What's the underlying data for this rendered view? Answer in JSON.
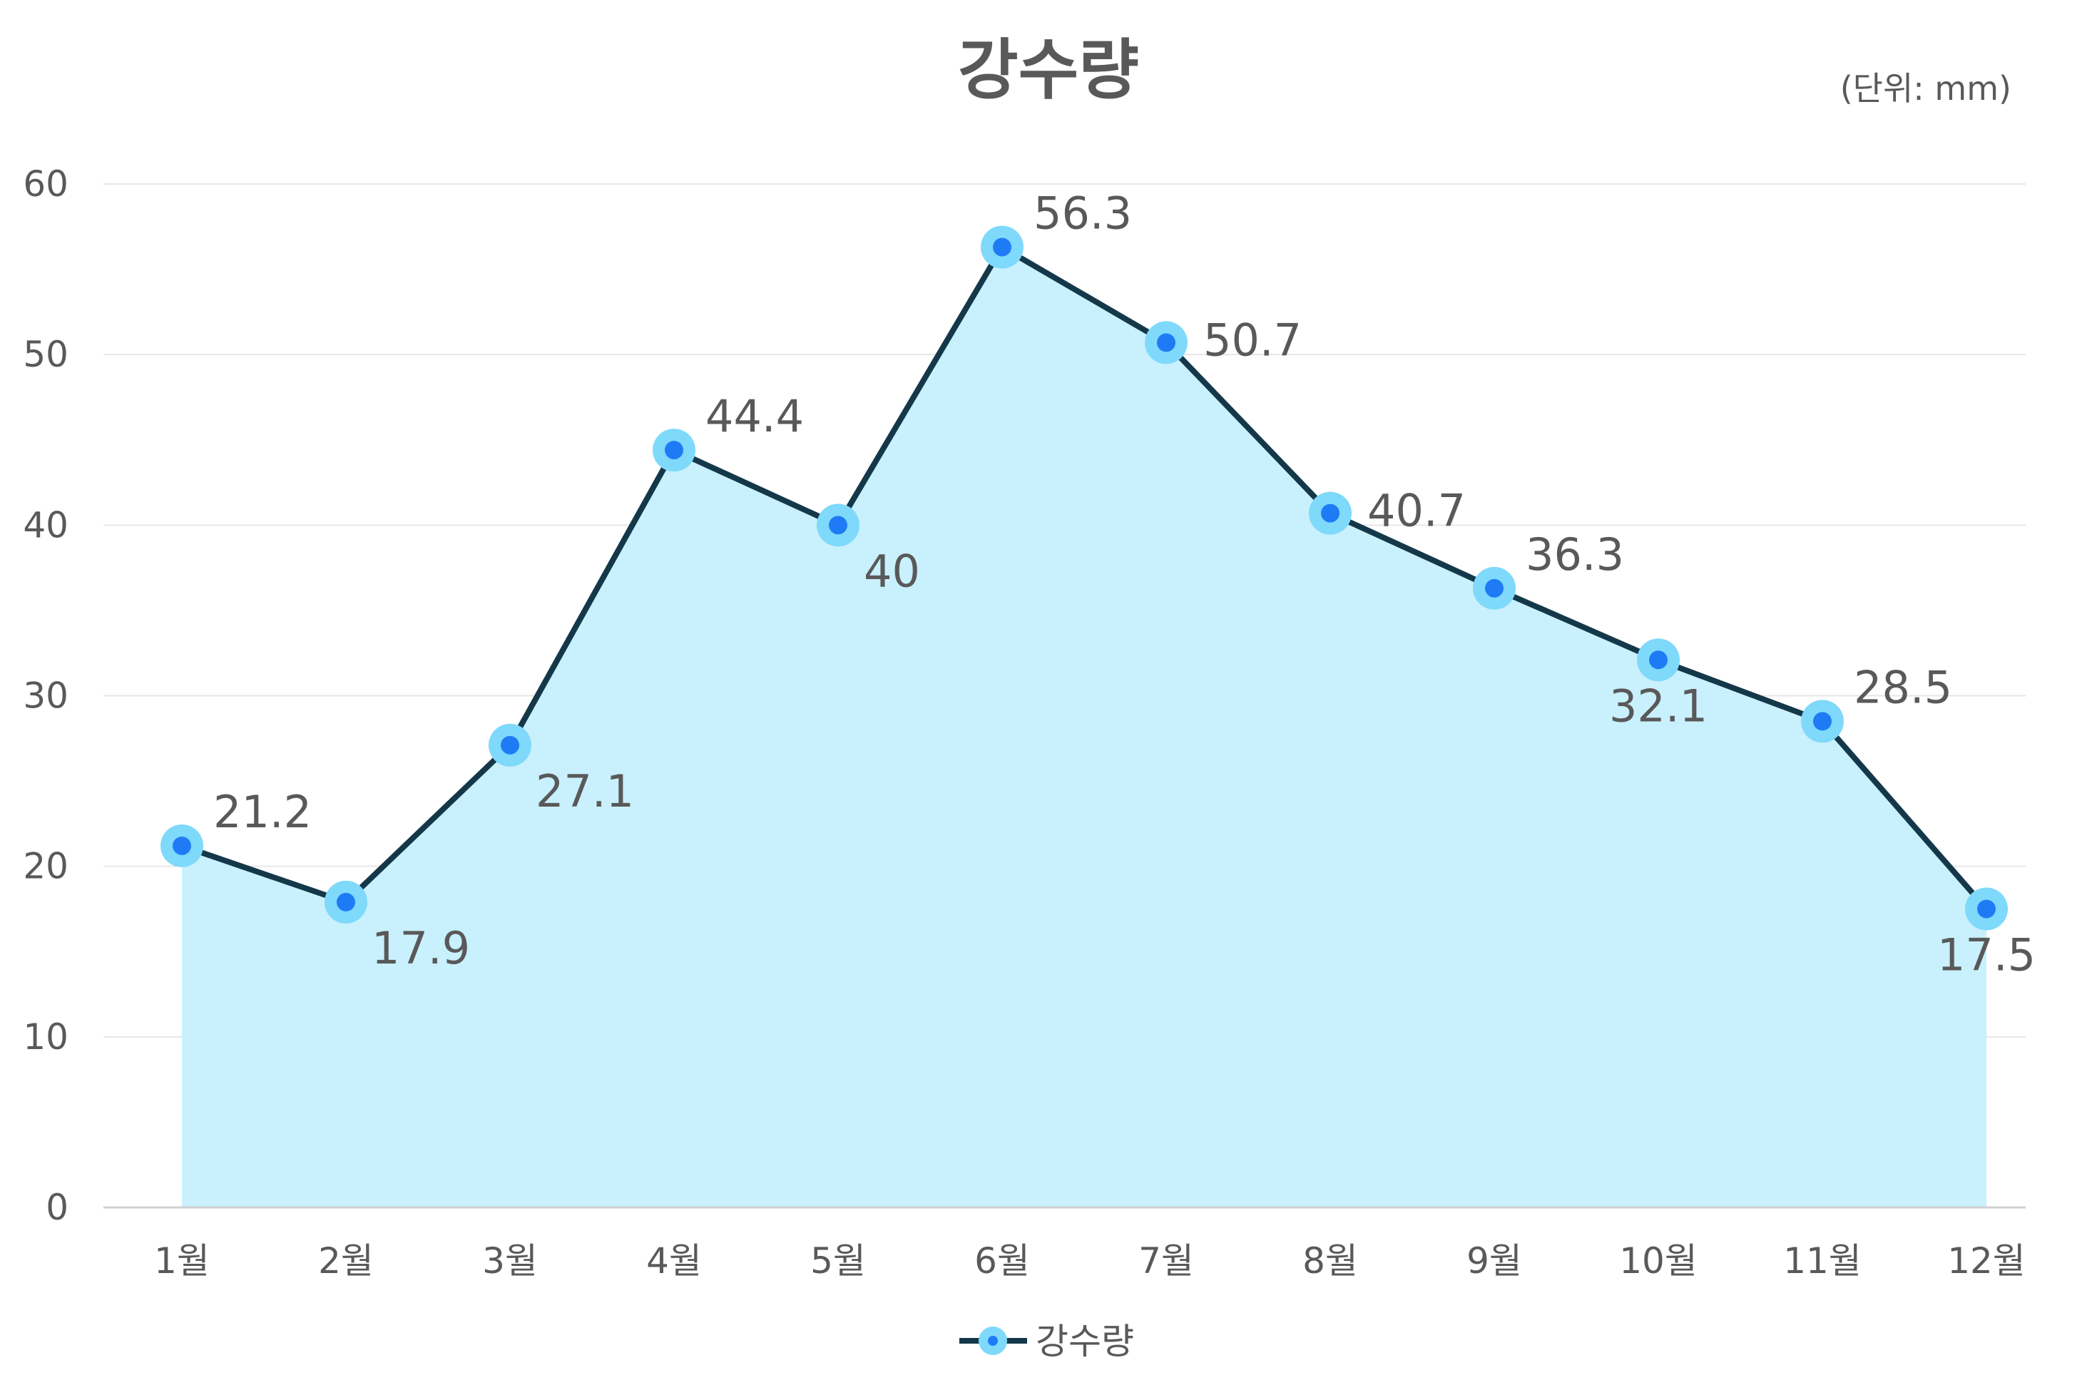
{
  "chart_data": {
    "type": "line",
    "title": "강수량",
    "unit_label": "(단위: mm)",
    "categories": [
      "1월",
      "2월",
      "3월",
      "4월",
      "5월",
      "6월",
      "7월",
      "8월",
      "9월",
      "10월",
      "11월",
      "12월"
    ],
    "series": [
      {
        "name": "강수량",
        "values": [
          21.2,
          17.9,
          27.1,
          44.4,
          40,
          56.3,
          50.7,
          40.7,
          36.3,
          32.1,
          28.5,
          17.5
        ],
        "labels": [
          "21.2",
          "17.9",
          "27.1",
          "44.4",
          "40",
          "56.3",
          "50.7",
          "40.7",
          "36.3",
          "32.1",
          "28.5",
          "17.5"
        ],
        "label_positions": [
          "above",
          "below",
          "below",
          "above",
          "below",
          "above",
          "right",
          "right",
          "above",
          "below",
          "above",
          "below"
        ]
      }
    ],
    "y_ticks": [
      "0",
      "10",
      "20",
      "30",
      "40",
      "50",
      "60"
    ],
    "ylim": [
      0,
      60
    ],
    "grid": true,
    "legend": "bottom",
    "colors": {
      "line": "#14384a",
      "area_fill": "#c9f0fd",
      "marker_outer": "#7fd9fa",
      "marker_inner": "#1f7bf5",
      "grid": "#e6e6e6",
      "axis": "#d0d0d0",
      "text": "#595959"
    }
  }
}
